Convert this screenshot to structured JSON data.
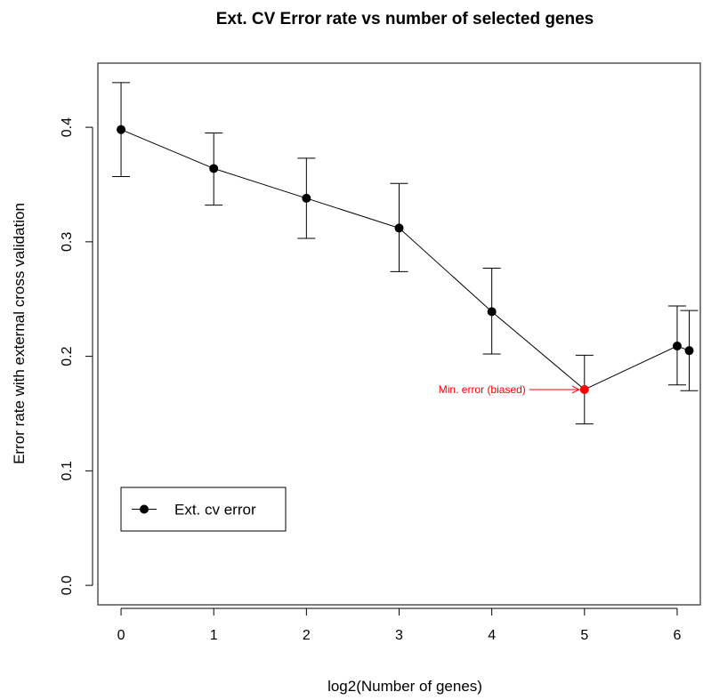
{
  "chart_data": {
    "type": "line",
    "title": "Ext. CV Error rate vs number of selected genes",
    "xlabel": "log2(Number of genes)",
    "ylabel": "Error rate with external cross validation",
    "xlim": [
      -0.25,
      6.25
    ],
    "ylim": [
      -0.017,
      0.456
    ],
    "x_ticks": [
      "0",
      "1",
      "2",
      "3",
      "4",
      "5",
      "6"
    ],
    "y_ticks": [
      "0.0",
      "0.1",
      "0.2",
      "0.3",
      "0.4"
    ],
    "grid": false,
    "series": [
      {
        "name": "Ext. cv error",
        "color": "#000000",
        "points": [
          {
            "x": 0,
            "y": 0.398,
            "lower": 0.357,
            "upper": 0.439
          },
          {
            "x": 1,
            "y": 0.364,
            "lower": 0.332,
            "upper": 0.395
          },
          {
            "x": 2,
            "y": 0.338,
            "lower": 0.303,
            "upper": 0.373
          },
          {
            "x": 3,
            "y": 0.312,
            "lower": 0.274,
            "upper": 0.351
          },
          {
            "x": 4,
            "y": 0.239,
            "lower": 0.202,
            "upper": 0.277
          },
          {
            "x": 5,
            "y": 0.171,
            "lower": 0.141,
            "upper": 0.201
          },
          {
            "x": 6,
            "y": 0.209,
            "lower": 0.175,
            "upper": 0.244
          },
          {
            "x": 6.13,
            "y": 0.205,
            "lower": 0.17,
            "upper": 0.24
          }
        ]
      }
    ],
    "highlight": {
      "index": 5,
      "color": "#ff0000"
    },
    "annotation": {
      "text": "Min. error (biased)",
      "x": 5,
      "y": 0.171,
      "color": "#ff0000"
    },
    "legend": {
      "position": "bottom-left",
      "label": "Ext. cv error"
    }
  }
}
